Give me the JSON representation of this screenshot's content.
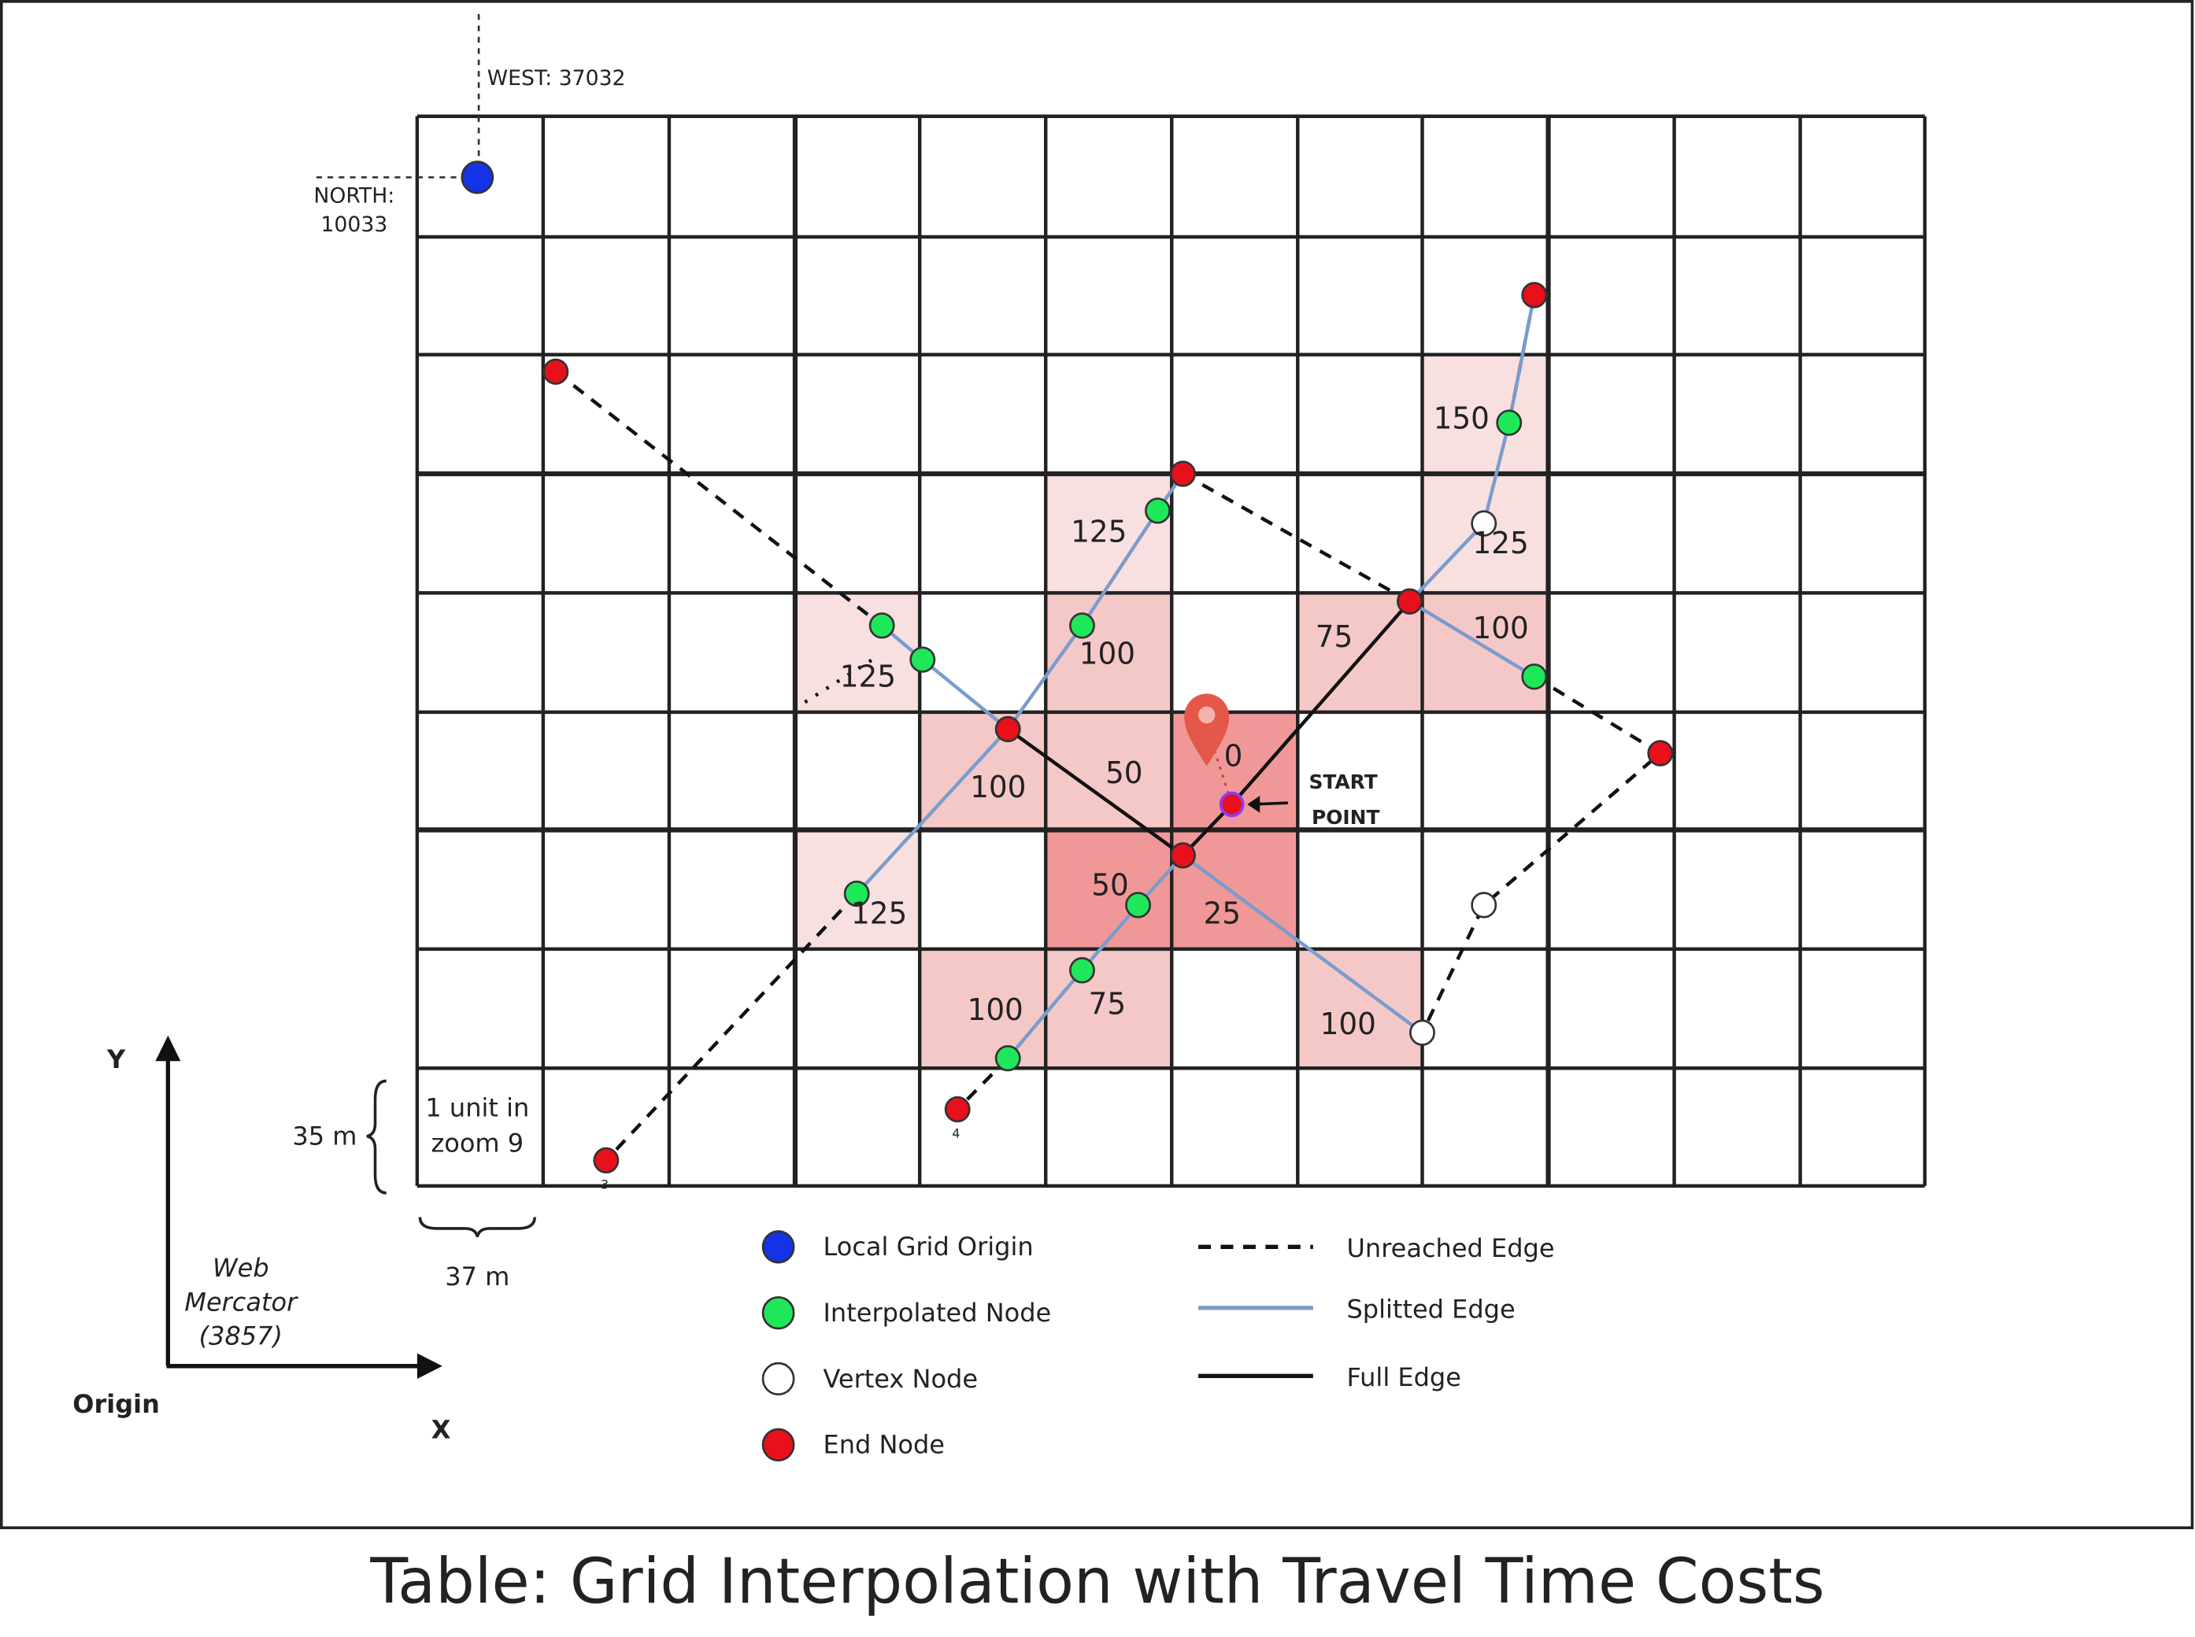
{
  "labels": {
    "west": "WEST: 37032",
    "north": [
      "NORTH:",
      "10033"
    ],
    "scale_unit": [
      "1 unit in",
      "zoom 9"
    ],
    "height": "35 m",
    "width": "37 m",
    "crs": [
      "Web",
      "Mercator",
      "(3857)"
    ],
    "y_axis": "Y",
    "x_axis": "X",
    "origin": "Origin",
    "start_point": [
      "START",
      "POINT"
    ],
    "node_3": "3",
    "node_4": "4"
  },
  "cells": [
    {
      "cost": 150
    },
    {
      "cost": 125
    },
    {
      "cost": 125
    },
    {
      "cost": 125
    },
    {
      "cost": 100
    },
    {
      "cost": 75
    },
    {
      "cost": 100
    },
    {
      "cost": 100
    },
    {
      "cost": 50
    },
    {
      "cost": 0
    },
    {
      "cost": 125
    },
    {
      "cost": 50
    },
    {
      "cost": 25
    },
    {
      "cost": 100
    },
    {
      "cost": 75
    },
    {
      "cost": 100
    }
  ],
  "legend": [
    "Local Grid Origin",
    "Interpolated Node",
    "Vertex Node",
    "End Node",
    "Unreached Edge",
    "Splitted Edge",
    "Full Edge"
  ],
  "caption": "Table: Grid Interpolation with Travel Time Costs"
}
